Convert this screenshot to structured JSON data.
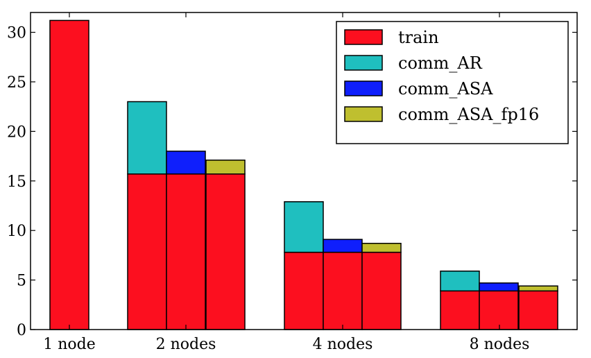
{
  "chart_data": {
    "type": "bar",
    "stacked": true,
    "title": "",
    "xlabel": "",
    "ylabel": "",
    "ylim": [
      0,
      32
    ],
    "yticks": [
      0,
      5,
      10,
      15,
      20,
      25,
      30
    ],
    "grid": false,
    "legend_position": "top-right",
    "groups": [
      "1 node",
      "2 nodes",
      "4 nodes",
      "8 nodes"
    ],
    "series": [
      {
        "name": "train",
        "color": "#fc0f1f"
      },
      {
        "name": "comm_AR",
        "color": "#1fbfbf"
      },
      {
        "name": "comm_ASA",
        "color": "#0f1ffc"
      },
      {
        "name": "comm_ASA_fp16",
        "color": "#bfbf2f"
      }
    ],
    "bars": [
      {
        "group": "1 node",
        "train": 31.2,
        "comm": null,
        "comm_value": 0
      },
      {
        "group": "2 nodes",
        "train": 15.7,
        "comm": "comm_AR",
        "comm_value": 7.3
      },
      {
        "group": "2 nodes",
        "train": 15.7,
        "comm": "comm_ASA",
        "comm_value": 2.3
      },
      {
        "group": "2 nodes",
        "train": 15.7,
        "comm": "comm_ASA_fp16",
        "comm_value": 1.4
      },
      {
        "group": "4 nodes",
        "train": 7.8,
        "comm": "comm_AR",
        "comm_value": 5.1
      },
      {
        "group": "4 nodes",
        "train": 7.8,
        "comm": "comm_ASA",
        "comm_value": 1.3
      },
      {
        "group": "4 nodes",
        "train": 7.8,
        "comm": "comm_ASA_fp16",
        "comm_value": 0.9
      },
      {
        "group": "8 nodes",
        "train": 3.9,
        "comm": "comm_AR",
        "comm_value": 2.0
      },
      {
        "group": "8 nodes",
        "train": 3.9,
        "comm": "comm_ASA",
        "comm_value": 0.8
      },
      {
        "group": "8 nodes",
        "train": 3.9,
        "comm": "comm_ASA_fp16",
        "comm_value": 0.5
      }
    ]
  }
}
